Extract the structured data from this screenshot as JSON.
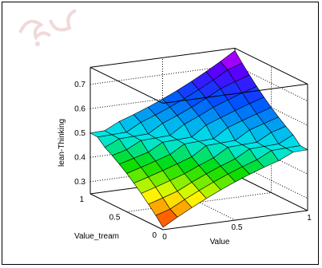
{
  "chart_data": {
    "type": "surface",
    "title": "",
    "xlabel": "Value",
    "ylabel": "Value_tream",
    "zlabel": "lean-Thinking",
    "x_ticks": [
      "0",
      "0.5",
      "1"
    ],
    "y_ticks": [
      "0",
      "0.5",
      "1"
    ],
    "z_ticks": [
      "0.3",
      "0.4",
      "0.5",
      "0.6",
      "0.7"
    ],
    "xlim": [
      0,
      1
    ],
    "ylim": [
      0,
      1
    ],
    "zlim": [
      0.25,
      0.77
    ],
    "grid": true,
    "colormap": "jet",
    "surface": {
      "x": [
        0,
        0.1,
        0.2,
        0.3,
        0.4,
        0.5,
        0.6,
        0.7,
        0.8,
        0.9,
        1
      ],
      "y": [
        0,
        0.1,
        0.2,
        0.3,
        0.4,
        0.5,
        0.6,
        0.7,
        0.8,
        0.9,
        1
      ],
      "plateau_z": 0.5,
      "min_z_at_origin": 0.26,
      "max_z_at_x1_y1": 0.76,
      "rule": "z = 0.5 where x + y < 1 is false only for the plateau band; rises toward (1,1) and falls toward (0,0)"
    }
  }
}
